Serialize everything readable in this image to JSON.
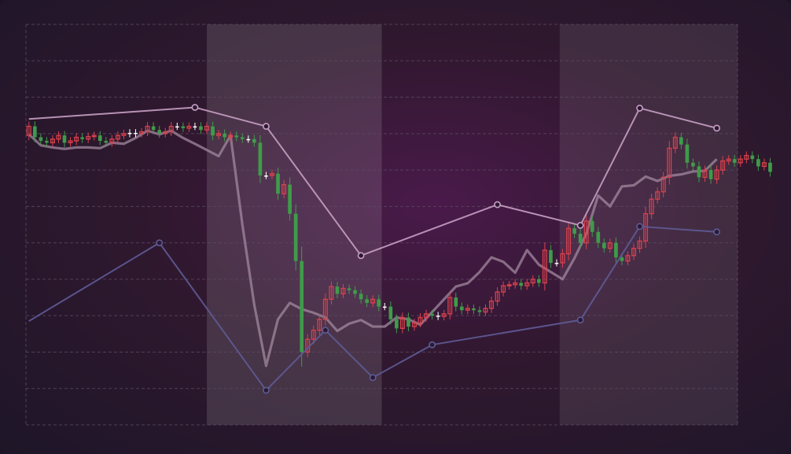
{
  "chart_data": {
    "type": "candlestick",
    "title": "",
    "xlabel": "",
    "ylabel": "",
    "ylim": [
      0,
      11
    ],
    "grid": true,
    "legend": "none",
    "n_candles": 120,
    "colors": {
      "background_center": "#4a1a4a",
      "background_edge": "#1e1628",
      "up": "#3f9b4a",
      "down": "#d9414c",
      "doji": "#ffffff",
      "moving_average": "#a2889f",
      "upper_envelope": "#c79fc2",
      "lower_envelope": "#5e5b96",
      "grid": "#5a4a62",
      "band": "#ffffff"
    },
    "highlight_bands": [
      {
        "from": 30,
        "to": 59.5,
        "opacity": 0.12
      },
      {
        "from": 89.5,
        "to": 119.5,
        "opacity": 0.09
      }
    ],
    "close": [
      8.2,
      7.9,
      7.8,
      7.75,
      7.85,
      7.95,
      7.75,
      7.8,
      7.9,
      7.85,
      7.92,
      7.95,
      7.8,
      7.75,
      7.85,
      7.95,
      8.0,
      8.02,
      8.0,
      8.05,
      8.2,
      8.1,
      8.0,
      8.05,
      8.2,
      8.2,
      8.15,
      8.2,
      8.2,
      8.1,
      8.2,
      7.95,
      8.0,
      7.9,
      7.95,
      7.9,
      7.85,
      7.85,
      7.75,
      6.85,
      6.85,
      6.9,
      6.35,
      6.6,
      5.8,
      4.5,
      2.0,
      2.35,
      2.6,
      2.9,
      3.45,
      3.8,
      3.6,
      3.75,
      3.7,
      3.6,
      3.45,
      3.35,
      3.45,
      3.25,
      3.25,
      2.9,
      2.65,
      2.95,
      2.7,
      2.8,
      2.95,
      3.05,
      3.0,
      2.98,
      3.05,
      3.5,
      3.25,
      3.15,
      3.2,
      3.15,
      3.1,
      3.2,
      3.4,
      3.65,
      3.82,
      3.85,
      3.9,
      3.82,
      3.9,
      4.0,
      3.9,
      4.8,
      4.45,
      4.45,
      4.7,
      5.4,
      5.25,
      5.0,
      5.6,
      5.3,
      5.0,
      4.85,
      5.0,
      4.6,
      4.5,
      4.65,
      4.85,
      5.05,
      5.8,
      6.2,
      6.4,
      6.8,
      7.6,
      7.9,
      7.7,
      7.2,
      7.1,
      6.8,
      7.0,
      6.75,
      7.0,
      7.25,
      7.3,
      7.2,
      7.3,
      7.4,
      7.3,
      7.1,
      7.2,
      6.95
    ],
    "moving_average": [
      [
        0,
        7.98
      ],
      [
        2,
        7.68
      ],
      [
        4,
        7.62
      ],
      [
        6,
        7.58
      ],
      [
        8,
        7.62
      ],
      [
        10,
        7.62
      ],
      [
        12,
        7.6
      ],
      [
        14,
        7.75
      ],
      [
        16,
        7.72
      ],
      [
        18,
        7.88
      ],
      [
        20,
        8.08
      ],
      [
        22,
        7.98
      ],
      [
        24,
        8.08
      ],
      [
        26,
        7.88
      ],
      [
        28,
        7.72
      ],
      [
        30,
        7.55
      ],
      [
        32,
        7.38
      ],
      [
        34,
        7.95
      ],
      [
        36,
        5.5
      ],
      [
        38,
        3.3
      ],
      [
        40,
        1.62
      ],
      [
        42,
        2.9
      ],
      [
        44,
        3.35
      ],
      [
        46,
        3.18
      ],
      [
        48,
        3.08
      ],
      [
        50,
        2.95
      ],
      [
        52,
        2.58
      ],
      [
        54,
        2.78
      ],
      [
        56,
        2.88
      ],
      [
        58,
        2.7
      ],
      [
        60,
        2.7
      ],
      [
        62,
        2.95
      ],
      [
        64,
        2.9
      ],
      [
        66,
        2.75
      ],
      [
        68,
        3.1
      ],
      [
        70,
        3.45
      ],
      [
        72,
        3.8
      ],
      [
        74,
        3.89
      ],
      [
        76,
        4.2
      ],
      [
        78,
        4.6
      ],
      [
        80,
        4.48
      ],
      [
        82,
        4.18
      ],
      [
        84,
        4.8
      ],
      [
        86,
        4.4
      ],
      [
        88,
        4.2
      ],
      [
        90,
        4.0
      ],
      [
        92,
        4.58
      ],
      [
        94,
        5.25
      ],
      [
        96,
        6.3
      ],
      [
        98,
        6.0
      ],
      [
        100,
        6.55
      ],
      [
        102,
        6.58
      ],
      [
        104,
        6.82
      ],
      [
        106,
        6.7
      ],
      [
        108,
        6.84
      ],
      [
        110,
        6.88
      ],
      [
        112,
        6.96
      ],
      [
        114,
        6.98
      ],
      [
        116,
        7.3
      ]
    ],
    "upper_envelope": [
      [
        0,
        8.4
      ],
      [
        28,
        8.72
      ],
      [
        40,
        8.2
      ],
      [
        56,
        4.65
      ],
      [
        79,
        6.05
      ],
      [
        93,
        5.48
      ],
      [
        103,
        8.7
      ],
      [
        116,
        8.15
      ]
    ],
    "lower_envelope": [
      [
        0,
        2.85
      ],
      [
        22,
        5.0
      ],
      [
        40,
        0.95
      ],
      [
        50,
        2.6
      ],
      [
        58,
        1.3
      ],
      [
        68,
        2.2
      ],
      [
        93,
        2.88
      ],
      [
        103,
        5.45
      ],
      [
        116,
        5.3
      ]
    ]
  }
}
